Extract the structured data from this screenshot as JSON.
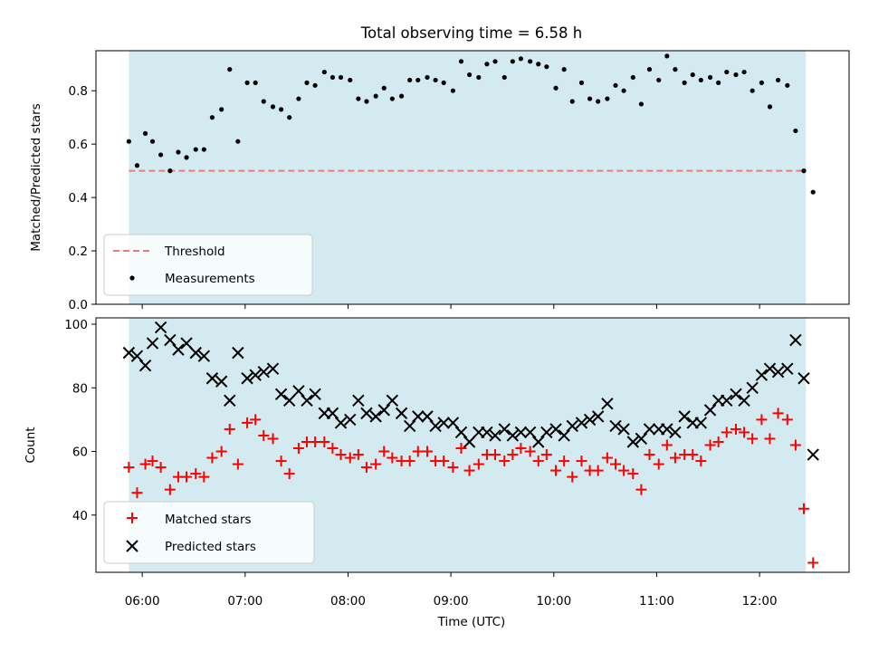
{
  "chart_data": {
    "type": "scatter",
    "title": "Total observing time = 6.58 h",
    "xlabel": "Time (UTC)",
    "x_ticks": [
      "06:00",
      "07:00",
      "08:00",
      "09:00",
      "10:00",
      "11:00",
      "12:00"
    ],
    "x_tick_hours": [
      6,
      7,
      8,
      9,
      10,
      11,
      12
    ],
    "xlim": [
      5.55,
      12.87
    ],
    "observing_window": [
      5.87,
      12.45
    ],
    "colors": {
      "window": "#d3eaf0",
      "threshold": "#f07a7a",
      "measurements": "#000000",
      "matched": "#ff0000",
      "predicted": "#000000"
    },
    "panels": [
      {
        "ylabel": "Matched/Predicted stars",
        "ylim": [
          0,
          0.95
        ],
        "y_ticks": [
          0.0,
          0.2,
          0.4,
          0.6,
          0.8
        ],
        "y_tick_labels": [
          "0.0",
          "0.2",
          "0.4",
          "0.6",
          "0.8"
        ],
        "threshold": {
          "name": "Threshold",
          "value": 0.5,
          "x_range": [
            5.87,
            12.45
          ]
        },
        "legend": {
          "location": "lower left",
          "entries": [
            "Threshold",
            "Measurements"
          ]
        },
        "series": [
          {
            "name": "Measurements",
            "marker": "dot",
            "x": [
              5.87,
              5.95,
              6.03,
              6.1,
              6.18,
              6.27,
              6.35,
              6.43,
              6.52,
              6.6,
              6.68,
              6.77,
              6.85,
              6.93,
              7.02,
              7.1,
              7.18,
              7.27,
              7.35,
              7.43,
              7.52,
              7.6,
              7.68,
              7.77,
              7.85,
              7.93,
              8.02,
              8.1,
              8.18,
              8.27,
              8.35,
              8.43,
              8.52,
              8.6,
              8.68,
              8.77,
              8.85,
              8.93,
              9.02,
              9.1,
              9.18,
              9.27,
              9.35,
              9.43,
              9.52,
              9.6,
              9.68,
              9.77,
              9.85,
              9.93,
              10.02,
              10.1,
              10.18,
              10.27,
              10.35,
              10.43,
              10.52,
              10.6,
              10.68,
              10.77,
              10.85,
              10.93,
              11.02,
              11.1,
              11.18,
              11.27,
              11.35,
              11.43,
              11.52,
              11.6,
              11.68,
              11.77,
              11.85,
              11.93,
              12.02,
              12.1,
              12.18,
              12.27,
              12.35,
              12.43,
              12.52
            ],
            "y": [
              0.61,
              0.52,
              0.64,
              0.61,
              0.56,
              0.5,
              0.57,
              0.55,
              0.58,
              0.58,
              0.7,
              0.73,
              0.88,
              0.61,
              0.83,
              0.83,
              0.76,
              0.74,
              0.73,
              0.7,
              0.77,
              0.83,
              0.82,
              0.87,
              0.85,
              0.85,
              0.84,
              0.77,
              0.76,
              0.78,
              0.81,
              0.77,
              0.78,
              0.84,
              0.84,
              0.85,
              0.84,
              0.83,
              0.8,
              0.91,
              0.86,
              0.85,
              0.9,
              0.91,
              0.85,
              0.91,
              0.92,
              0.91,
              0.9,
              0.89,
              0.81,
              0.88,
              0.76,
              0.83,
              0.77,
              0.76,
              0.77,
              0.82,
              0.8,
              0.85,
              0.75,
              0.88,
              0.84,
              0.93,
              0.88,
              0.83,
              0.86,
              0.84,
              0.85,
              0.83,
              0.87,
              0.86,
              0.87,
              0.8,
              0.83,
              0.74,
              0.84,
              0.82,
              0.65,
              0.5,
              0.42
            ]
          }
        ]
      },
      {
        "ylabel": "Count",
        "ylim": [
          22,
          102
        ],
        "y_ticks": [
          40,
          60,
          80,
          100
        ],
        "y_tick_labels": [
          "40",
          "60",
          "80",
          "100"
        ],
        "legend": {
          "location": "lower left",
          "entries": [
            "Matched stars",
            "Predicted stars"
          ]
        },
        "series": [
          {
            "name": "Matched stars",
            "marker": "plus",
            "x": [
              5.87,
              5.95,
              6.03,
              6.1,
              6.18,
              6.27,
              6.35,
              6.43,
              6.52,
              6.6,
              6.68,
              6.77,
              6.85,
              6.93,
              7.02,
              7.1,
              7.18,
              7.27,
              7.35,
              7.43,
              7.52,
              7.6,
              7.68,
              7.77,
              7.85,
              7.93,
              8.02,
              8.1,
              8.18,
              8.27,
              8.35,
              8.43,
              8.52,
              8.6,
              8.68,
              8.77,
              8.85,
              8.93,
              9.02,
              9.1,
              9.18,
              9.27,
              9.35,
              9.43,
              9.52,
              9.6,
              9.68,
              9.77,
              9.85,
              9.93,
              10.02,
              10.1,
              10.18,
              10.27,
              10.35,
              10.43,
              10.52,
              10.6,
              10.68,
              10.77,
              10.85,
              10.93,
              11.02,
              11.1,
              11.18,
              11.27,
              11.35,
              11.43,
              11.52,
              11.6,
              11.68,
              11.77,
              11.85,
              11.93,
              12.02,
              12.1,
              12.18,
              12.27,
              12.35,
              12.43,
              12.52
            ],
            "y": [
              55,
              47,
              56,
              57,
              55,
              48,
              52,
              52,
              53,
              52,
              58,
              60,
              67,
              56,
              69,
              70,
              65,
              64,
              57,
              53,
              61,
              63,
              63,
              63,
              61,
              59,
              58,
              59,
              55,
              56,
              60,
              58,
              57,
              57,
              60,
              60,
              57,
              57,
              55,
              61,
              54,
              56,
              59,
              59,
              57,
              59,
              61,
              60,
              57,
              59,
              54,
              57,
              52,
              57,
              54,
              54,
              58,
              56,
              54,
              53,
              48,
              59,
              56,
              62,
              58,
              59,
              59,
              57,
              62,
              63,
              66,
              67,
              66,
              64,
              70,
              64,
              72,
              70,
              62,
              42,
              25
            ]
          },
          {
            "name": "Predicted stars",
            "marker": "x",
            "x": [
              5.87,
              5.95,
              6.03,
              6.1,
              6.18,
              6.27,
              6.35,
              6.43,
              6.52,
              6.6,
              6.68,
              6.77,
              6.85,
              6.93,
              7.02,
              7.1,
              7.18,
              7.27,
              7.35,
              7.43,
              7.52,
              7.6,
              7.68,
              7.77,
              7.85,
              7.93,
              8.02,
              8.1,
              8.18,
              8.27,
              8.35,
              8.43,
              8.52,
              8.6,
              8.68,
              8.77,
              8.85,
              8.93,
              9.02,
              9.1,
              9.18,
              9.27,
              9.35,
              9.43,
              9.52,
              9.6,
              9.68,
              9.77,
              9.85,
              9.93,
              10.02,
              10.1,
              10.18,
              10.27,
              10.35,
              10.43,
              10.52,
              10.6,
              10.68,
              10.77,
              10.85,
              10.93,
              11.02,
              11.1,
              11.18,
              11.27,
              11.35,
              11.43,
              11.52,
              11.6,
              11.68,
              11.77,
              11.85,
              11.93,
              12.02,
              12.1,
              12.18,
              12.27,
              12.35,
              12.43,
              12.52
            ],
            "y": [
              91,
              90,
              87,
              94,
              99,
              95,
              92,
              94,
              91,
              90,
              83,
              82,
              76,
              91,
              83,
              84,
              85,
              86,
              78,
              76,
              79,
              76,
              78,
              72,
              72,
              69,
              70,
              76,
              72,
              71,
              73,
              76,
              72,
              68,
              71,
              71,
              68,
              69,
              69,
              66,
              63,
              66,
              66,
              65,
              67,
              65,
              66,
              66,
              63,
              66,
              67,
              65,
              68,
              69,
              70,
              71,
              75,
              68,
              67,
              63,
              64,
              67,
              67,
              67,
              66,
              71,
              69,
              69,
              73,
              76,
              76,
              78,
              76,
              80,
              84,
              86,
              85,
              86,
              95,
              83,
              59
            ]
          }
        ]
      }
    ]
  }
}
